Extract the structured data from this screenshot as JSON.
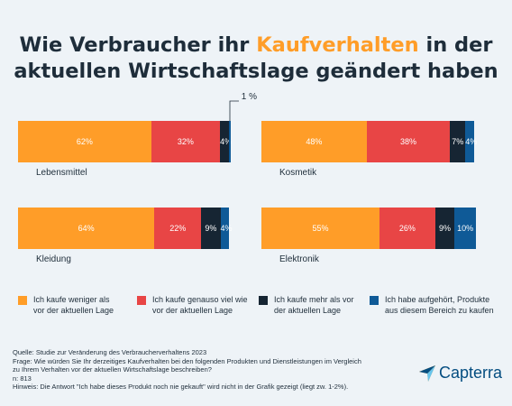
{
  "title": {
    "part1": "Wie Verbraucher ihr ",
    "highlight": "Kaufverhalten",
    "part2": " in der",
    "line2": "aktuellen Wirtschaftslage geändert haben"
  },
  "colors": {
    "background": "#eef3f7",
    "title": "#1e2d3a",
    "highlight": "#ff9d28",
    "series": [
      "#ff9d28",
      "#e84545",
      "#162533",
      "#0f5a97"
    ]
  },
  "chart_data": {
    "type": "bar",
    "orientation": "horizontal-stacked-100",
    "categories": [
      "Lebensmittel",
      "Kosmetik",
      "Kleidung",
      "Elektronik"
    ],
    "series": [
      {
        "name": "Ich kaufe weniger als vor der aktuellen Lage",
        "values": [
          62,
          48,
          64,
          55
        ]
      },
      {
        "name": "Ich kaufe genauso viel wie vor der aktuellen Lage",
        "values": [
          32,
          38,
          22,
          26
        ]
      },
      {
        "name": "Ich kaufe mehr als vor der aktuellen Lage",
        "values": [
          4,
          7,
          9,
          9
        ]
      },
      {
        "name": "Ich habe aufgehört, Produkte aus diesem Bereich zu kaufen",
        "values": [
          1,
          4,
          4,
          10
        ]
      }
    ],
    "data_labels": [
      [
        "62%",
        "32%",
        "4%",
        ""
      ],
      [
        "48%",
        "38%",
        "7%",
        "4%"
      ],
      [
        "64%",
        "22%",
        "9%",
        "4%"
      ],
      [
        "55%",
        "26%",
        "9%",
        "10%"
      ]
    ],
    "callout": {
      "category": "Lebensmittel",
      "series_index": 3,
      "text": "1 %"
    },
    "legend_position": "bottom"
  },
  "legend": [
    {
      "line1": "Ich kaufe weniger als",
      "line2": "vor der aktuellen Lage",
      "color": "#ff9d28"
    },
    {
      "line1": "Ich kaufe genauso viel wie",
      "line2": "vor der aktuellen Lage",
      "color": "#e84545"
    },
    {
      "line1": "Ich kaufe mehr als vor",
      "line2": "der aktuellen Lage",
      "color": "#162533"
    },
    {
      "line1": "Ich habe aufgehört, Produkte",
      "line2": "aus diesem Bereich zu kaufen",
      "color": "#0f5a97"
    }
  ],
  "footer": {
    "source": "Quelle: Studie zur Veränderung des Verbraucherverhaltens 2023",
    "question_line1": "Frage: Wie würden Sie Ihr derzeitiges Kaufverhalten bei den folgenden Produkten und Dienstleistungen im Vergleich",
    "question_line2": "zu Ihrem Verhalten vor der aktuellen Wirtschaftslage beschreiben?",
    "n": "n: 813",
    "note": "Hinweis: Die Antwort \"Ich habe dieses Produkt noch nie gekauft\" wird nicht in der Grafik gezeigt (liegt zw. 1-2%)."
  },
  "brand": {
    "name": "Capterra",
    "icon": "capterra-arrow-logo"
  }
}
